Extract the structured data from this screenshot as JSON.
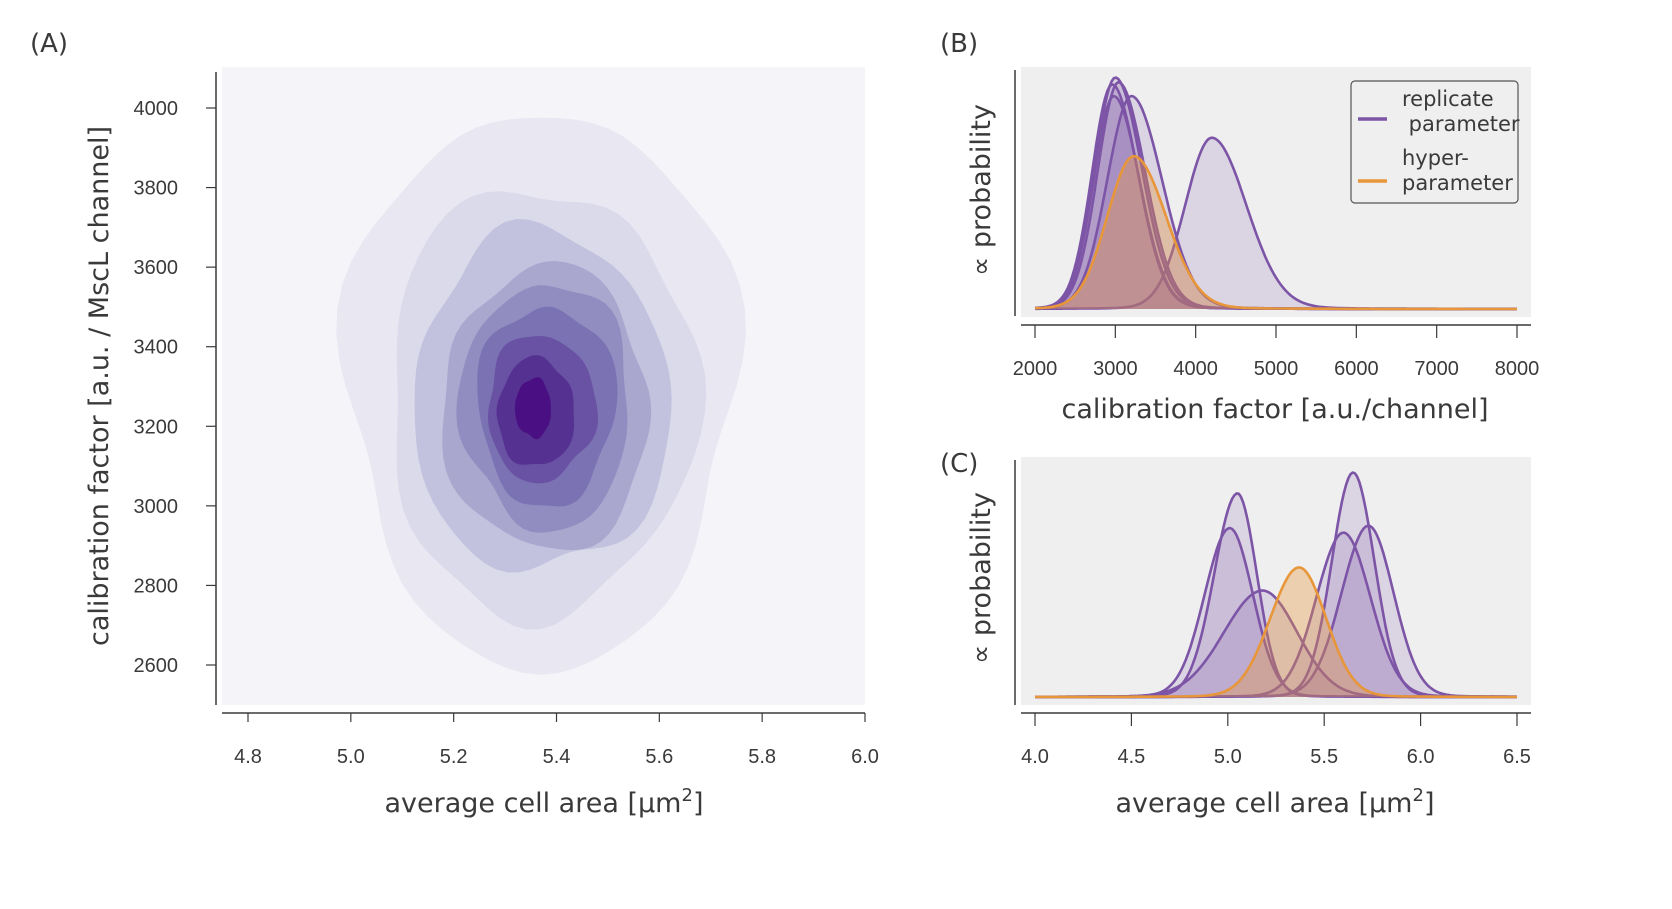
{
  "panels": {
    "a": {
      "label": "(A)"
    },
    "b": {
      "label": "(B)"
    },
    "c": {
      "label": "(C)"
    }
  },
  "colors": {
    "replicate": "#7d55a7",
    "hyper": "#e8963a",
    "panel_bg_b": "#efefef",
    "panel_bg_a": "#f5f4f9",
    "axis": "#3a3a3a"
  },
  "chart_data": [
    {
      "id": "A",
      "type": "heatmap",
      "subtype": "kde-contour",
      "title": "",
      "xlabel": "average cell area [µm²]",
      "xlabel_base": "average cell area [µm",
      "xlabel_sup": "2",
      "xlabel_end": "]",
      "ylabel": "calibration factor [a.u. / MscL channel]",
      "xlim": [
        4.75,
        6.0
      ],
      "ylim": [
        2500,
        4100
      ],
      "xticks": [
        4.8,
        5.0,
        5.2,
        5.4,
        5.6,
        5.8,
        6.0
      ],
      "xtick_labels": [
        "4.8",
        "5.0",
        "5.2",
        "5.4",
        "5.6",
        "5.8",
        "6.0"
      ],
      "yticks": [
        2600,
        2800,
        3000,
        3200,
        3400,
        3600,
        3800,
        4000
      ],
      "ytick_labels": [
        "2600",
        "2800",
        "3000",
        "3200",
        "3400",
        "3600",
        "3800",
        "4000"
      ],
      "colormap": "Purples",
      "levels": [
        {
          "level": 1,
          "color": "#e9e7f2",
          "cx": 5.37,
          "cy": 3300,
          "rx": 0.38,
          "ry_top": 700,
          "ry_bottom": 700
        },
        {
          "level": 2,
          "color": "#dadaea",
          "cx": 5.37,
          "cy": 3280,
          "rx": 0.3,
          "ry_top": 560,
          "ry_bottom": 520
        },
        {
          "level": 3,
          "color": "#c2c2df",
          "cx": 5.37,
          "cy": 3270,
          "rx": 0.25,
          "ry_top": 440,
          "ry_bottom": 420
        },
        {
          "level": 4,
          "color": "#aaa7cf",
          "cx": 5.38,
          "cy": 3260,
          "rx": 0.2,
          "ry_top": 380,
          "ry_bottom": 340
        },
        {
          "level": 5,
          "color": "#918dc0",
          "cx": 5.38,
          "cy": 3260,
          "rx": 0.165,
          "ry_top": 320,
          "ry_bottom": 300
        },
        {
          "level": 6,
          "color": "#7b72b3",
          "cx": 5.38,
          "cy": 3260,
          "rx": 0.135,
          "ry_top": 260,
          "ry_bottom": 240
        },
        {
          "level": 7,
          "color": "#6951a3",
          "cx": 5.37,
          "cy": 3250,
          "rx": 0.105,
          "ry_top": 190,
          "ry_bottom": 180
        },
        {
          "level": 8,
          "color": "#553192",
          "cx": 5.36,
          "cy": 3240,
          "rx": 0.075,
          "ry_top": 145,
          "ry_bottom": 130
        },
        {
          "level": 9,
          "color": "#4a0f82",
          "cx": 5.355,
          "cy": 3250,
          "rx": 0.035,
          "ry_top": 80,
          "ry_bottom": 70
        }
      ]
    },
    {
      "id": "B",
      "type": "area",
      "title": "",
      "xlabel": "calibration factor [a.u./channel]",
      "ylabel": "∝  probability",
      "xlim": [
        1820,
        8180
      ],
      "ylim": [
        0,
        1.08
      ],
      "xticks": [
        2000,
        3000,
        4000,
        5000,
        6000,
        7000,
        8000
      ],
      "xtick_labels": [
        "2000",
        "3000",
        "4000",
        "5000",
        "6000",
        "7000",
        "8000"
      ],
      "grid": false,
      "legend": {
        "placement": "top-right",
        "entries": [
          {
            "label_lines": [
              "replicate",
              " parameter"
            ],
            "series": "replicate"
          },
          {
            "label_lines": [
              "hyper-",
              "parameter"
            ],
            "series": "hyper"
          }
        ]
      },
      "series": [
        {
          "name": "replicate 1",
          "kind": "replicate",
          "mu": 3000,
          "sigma_l": 260,
          "sigma_r": 330,
          "peak": 1.0
        },
        {
          "name": "replicate 2",
          "kind": "replicate",
          "mu": 2960,
          "sigma_l": 250,
          "sigma_r": 320,
          "peak": 0.97
        },
        {
          "name": "replicate 3",
          "kind": "replicate",
          "mu": 3040,
          "sigma_l": 260,
          "sigma_r": 330,
          "peak": 0.98
        },
        {
          "name": "replicate 4",
          "kind": "replicate",
          "mu": 2980,
          "sigma_l": 250,
          "sigma_r": 320,
          "peak": 0.92
        },
        {
          "name": "replicate 5",
          "kind": "replicate",
          "mu": 3200,
          "sigma_l": 300,
          "sigma_r": 380,
          "peak": 0.92
        },
        {
          "name": "replicate 6",
          "kind": "replicate",
          "mu": 4200,
          "sigma_l": 330,
          "sigma_r": 430,
          "peak": 0.74
        },
        {
          "name": "hyperparameter",
          "kind": "hyper",
          "mu": 3230,
          "sigma_l": 330,
          "sigma_r": 400,
          "peak": 0.66
        }
      ]
    },
    {
      "id": "C",
      "type": "area",
      "title": "",
      "xlabel": "average cell area [µm²]",
      "xlabel_base": "average cell area [µm",
      "xlabel_sup": "2",
      "xlabel_end": "]",
      "ylabel": "∝  probability",
      "xlim": [
        3.96,
        6.54
      ],
      "ylim": [
        0,
        1.08
      ],
      "xticks": [
        4.0,
        4.5,
        5.0,
        5.5,
        6.0,
        6.5
      ],
      "xtick_labels": [
        "4.0",
        "4.5",
        "5.0",
        "5.5",
        "6.0",
        "6.5"
      ],
      "grid": false,
      "series": [
        {
          "name": "replicate 1",
          "kind": "replicate",
          "mu": 5.05,
          "sigma_l": 0.12,
          "sigma_r": 0.1,
          "peak": 0.88
        },
        {
          "name": "replicate 2",
          "kind": "replicate",
          "mu": 5.01,
          "sigma_l": 0.13,
          "sigma_r": 0.12,
          "peak": 0.73
        },
        {
          "name": "replicate 3",
          "kind": "replicate",
          "mu": 5.18,
          "sigma_l": 0.2,
          "sigma_r": 0.18,
          "peak": 0.46
        },
        {
          "name": "replicate 4",
          "kind": "replicate",
          "mu": 5.65,
          "sigma_l": 0.11,
          "sigma_r": 0.11,
          "peak": 0.97
        },
        {
          "name": "replicate 5",
          "kind": "replicate",
          "mu": 5.6,
          "sigma_l": 0.14,
          "sigma_r": 0.14,
          "peak": 0.71
        },
        {
          "name": "replicate 6",
          "kind": "replicate",
          "mu": 5.73,
          "sigma_l": 0.14,
          "sigma_r": 0.13,
          "peak": 0.74
        },
        {
          "name": "hyperparameter",
          "kind": "hyper",
          "mu": 5.37,
          "sigma_l": 0.15,
          "sigma_r": 0.14,
          "peak": 0.56
        }
      ]
    }
  ]
}
